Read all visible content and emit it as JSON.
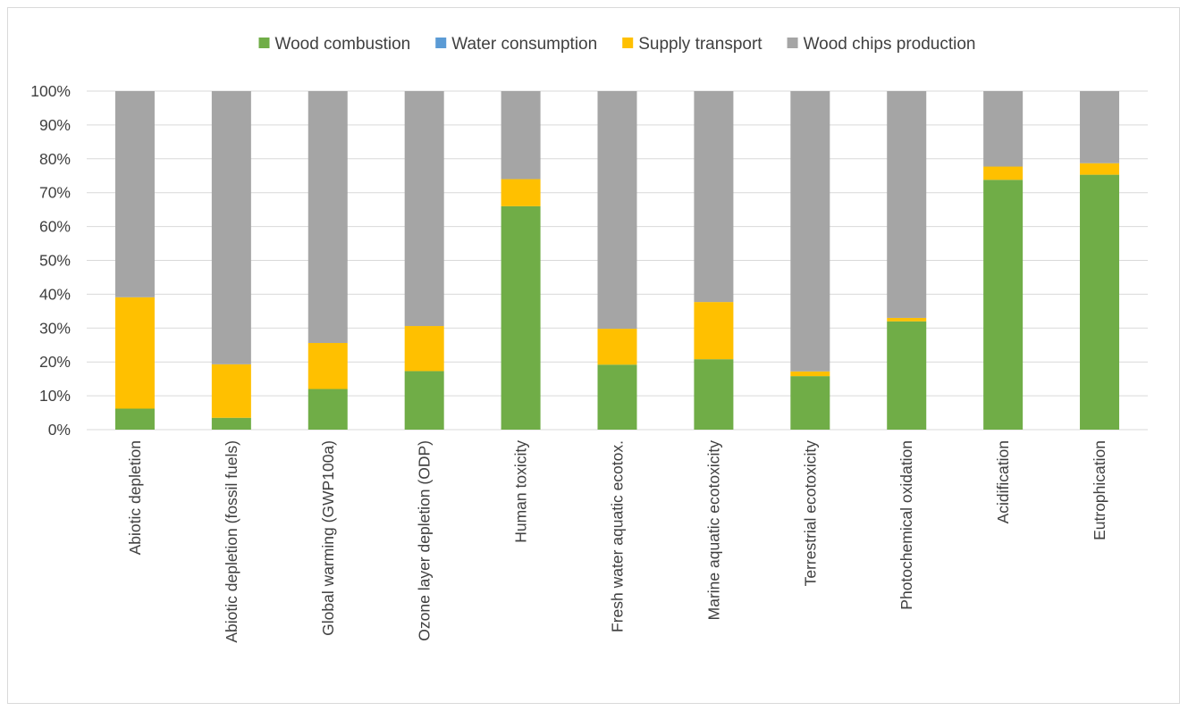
{
  "chart_data": {
    "type": "bar",
    "stacked": true,
    "percent_stacked": true,
    "title": "",
    "xlabel": "",
    "ylabel": "",
    "ylim": [
      0,
      100
    ],
    "y_ticks": [
      "0%",
      "10%",
      "20%",
      "30%",
      "40%",
      "50%",
      "60%",
      "70%",
      "80%",
      "90%",
      "100%"
    ],
    "grid": true,
    "legend_position": "top",
    "categories": [
      "Abiotic depletion",
      "Abiotic depletion (fossil fuels)",
      "Global warming (GWP100a)",
      "Ozone layer depletion (ODP)",
      "Human toxicity",
      "Fresh water aquatic ecotox.",
      "Marine aquatic ecotoxicity",
      "Terrestrial ecotoxicity",
      "Photochemical oxidation",
      "Acidification",
      "Eutrophication"
    ],
    "series": [
      {
        "name": "Wood combustion",
        "color": "#70ad47",
        "values": [
          6.2,
          3.5,
          12.0,
          17.3,
          66.0,
          19.2,
          20.8,
          15.8,
          32.0,
          73.8,
          75.3
        ]
      },
      {
        "name": "Water consumption",
        "color": "#5b9bd5",
        "values": [
          0,
          0,
          0,
          0,
          0,
          0,
          0,
          0,
          0,
          0,
          0
        ]
      },
      {
        "name": "Supply transport",
        "color": "#ffc000",
        "values": [
          32.9,
          15.8,
          13.6,
          13.3,
          8.0,
          10.6,
          16.9,
          1.4,
          1.0,
          3.9,
          3.4
        ]
      },
      {
        "name": "Wood chips production",
        "color": "#a5a5a5",
        "values": [
          60.9,
          80.7,
          74.4,
          69.4,
          26.0,
          70.2,
          62.3,
          82.8,
          67.0,
          22.3,
          21.3
        ]
      }
    ]
  }
}
